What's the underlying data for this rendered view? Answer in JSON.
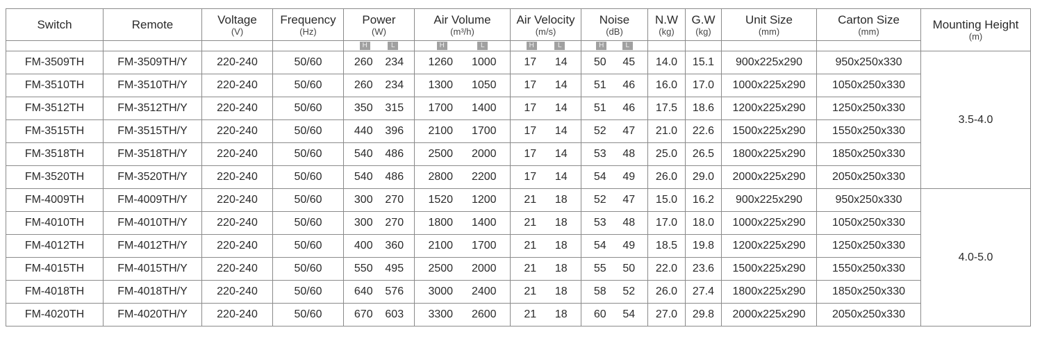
{
  "headers": [
    {
      "label": "Switch",
      "unit": ""
    },
    {
      "label": "Remote",
      "unit": ""
    },
    {
      "label": "Voltage",
      "unit": "(V)"
    },
    {
      "label": "Frequency",
      "unit": "(Hz)"
    },
    {
      "label": "Power",
      "unit": "(W)"
    },
    {
      "label": "Air Volume",
      "unit": "(m³/h)"
    },
    {
      "label": "Air Velocity",
      "unit": "(m/s)"
    },
    {
      "label": "Noise",
      "unit": "(dB)"
    },
    {
      "label": "N.W",
      "unit": "(kg)"
    },
    {
      "label": "G.W",
      "unit": "(kg)"
    },
    {
      "label": "Unit Size",
      "unit": "(mm)"
    },
    {
      "label": "Carton Size",
      "unit": "(mm)"
    },
    {
      "label": "Mounting Height",
      "unit": "(m)"
    }
  ],
  "speed_badges": {
    "high": "H",
    "low": "L"
  },
  "badge_color": "#a0a0a0",
  "rows": [
    [
      "FM-3509TH",
      "FM-3509TH/Y",
      "220-240",
      "50/60",
      "260",
      "234",
      "1260",
      "1000",
      "17",
      "14",
      "50",
      "45",
      "14.0",
      "15.1",
      "900x225x290",
      "950x250x330"
    ],
    [
      "FM-3510TH",
      "FM-3510TH/Y",
      "220-240",
      "50/60",
      "260",
      "234",
      "1300",
      "1050",
      "17",
      "14",
      "51",
      "46",
      "16.0",
      "17.0",
      "1000x225x290",
      "1050x250x330"
    ],
    [
      "FM-3512TH",
      "FM-3512TH/Y",
      "220-240",
      "50/60",
      "350",
      "315",
      "1700",
      "1400",
      "17",
      "14",
      "51",
      "46",
      "17.5",
      "18.6",
      "1200x225x290",
      "1250x250x330"
    ],
    [
      "FM-3515TH",
      "FM-3515TH/Y",
      "220-240",
      "50/60",
      "440",
      "396",
      "2100",
      "1700",
      "17",
      "14",
      "52",
      "47",
      "21.0",
      "22.6",
      "1500x225x290",
      "1550x250x330"
    ],
    [
      "FM-3518TH",
      "FM-3518TH/Y",
      "220-240",
      "50/60",
      "540",
      "486",
      "2500",
      "2000",
      "17",
      "14",
      "53",
      "48",
      "25.0",
      "26.5",
      "1800x225x290",
      "1850x250x330"
    ],
    [
      "FM-3520TH",
      "FM-3520TH/Y",
      "220-240",
      "50/60",
      "540",
      "486",
      "2800",
      "2200",
      "17",
      "14",
      "54",
      "49",
      "26.0",
      "29.0",
      "2000x225x290",
      "2050x250x330"
    ],
    [
      "FM-4009TH",
      "FM-4009TH/Y",
      "220-240",
      "50/60",
      "300",
      "270",
      "1520",
      "1200",
      "21",
      "18",
      "52",
      "47",
      "15.0",
      "16.2",
      "900x225x290",
      "950x250x330"
    ],
    [
      "FM-4010TH",
      "FM-4010TH/Y",
      "220-240",
      "50/60",
      "300",
      "270",
      "1800",
      "1400",
      "21",
      "18",
      "53",
      "48",
      "17.0",
      "18.0",
      "1000x225x290",
      "1050x250x330"
    ],
    [
      "FM-4012TH",
      "FM-4012TH/Y",
      "220-240",
      "50/60",
      "400",
      "360",
      "2100",
      "1700",
      "21",
      "18",
      "54",
      "49",
      "18.5",
      "19.8",
      "1200x225x290",
      "1250x250x330"
    ],
    [
      "FM-4015TH",
      "FM-4015TH/Y",
      "220-240",
      "50/60",
      "550",
      "495",
      "2500",
      "2000",
      "21",
      "18",
      "55",
      "50",
      "22.0",
      "23.6",
      "1500x225x290",
      "1550x250x330"
    ],
    [
      "FM-4018TH",
      "FM-4018TH/Y",
      "220-240",
      "50/60",
      "640",
      "576",
      "3000",
      "2400",
      "21",
      "18",
      "58",
      "52",
      "26.0",
      "27.4",
      "1800x225x290",
      "1850x250x330"
    ],
    [
      "FM-4020TH",
      "FM-4020TH/Y",
      "220-240",
      "50/60",
      "670",
      "603",
      "3300",
      "2600",
      "21",
      "18",
      "60",
      "54",
      "27.0",
      "29.8",
      "2000x225x290",
      "2050x250x330"
    ]
  ],
  "mounting_groups": [
    {
      "value": "3.5-4.0",
      "span": 6
    },
    {
      "value": "4.0-5.0",
      "span": 6
    }
  ]
}
